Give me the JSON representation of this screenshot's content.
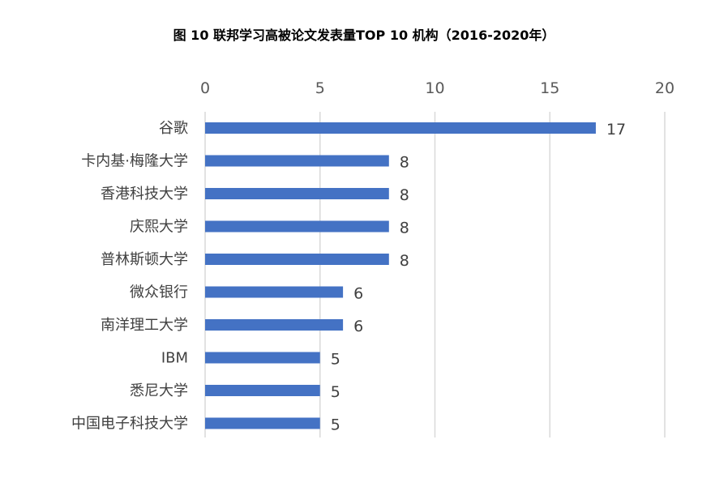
{
  "chart_data": {
    "type": "bar",
    "orientation": "horizontal",
    "title": "图 10 联邦学习高被论文发表量TOP 10 机构（2016-2020年）",
    "categories": [
      "谷歌",
      "卡内基·梅隆大学",
      "香港科技大学",
      "庆熙大学",
      "普林斯顿大学",
      "微众银行",
      "南洋理工大学",
      "IBM",
      "悉尼大学",
      "中国电子科技大学"
    ],
    "values": [
      17,
      8,
      8,
      8,
      8,
      6,
      6,
      5,
      5,
      5
    ],
    "xticks": [
      0,
      5,
      10,
      15,
      20
    ],
    "xlim": [
      0,
      20
    ],
    "x_axis_position": "top",
    "grid": true,
    "data_labels": true,
    "bar_color": "#4472C4",
    "grid_color": "#D9D9D9"
  }
}
